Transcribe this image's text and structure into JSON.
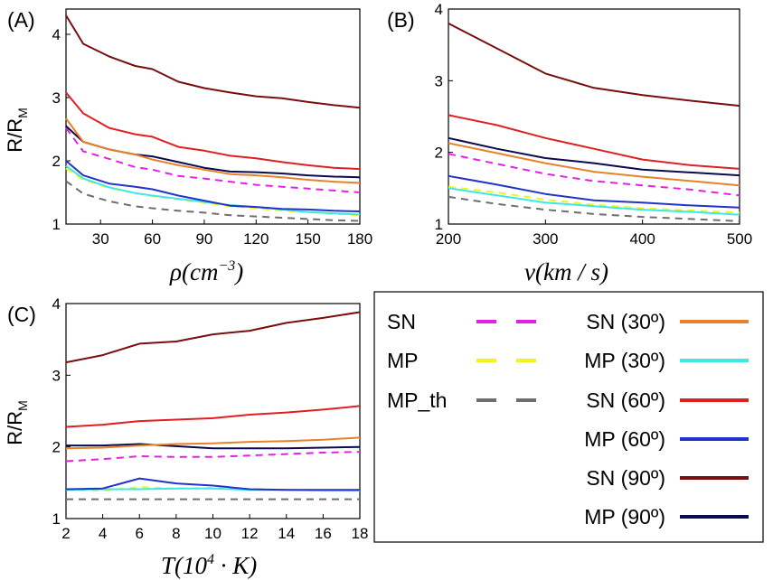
{
  "chart_data": [
    {
      "panel": "(A)",
      "type": "line",
      "ylabel": "R/R",
      "ylabel_sub": "M",
      "xlabel_var": "ρ",
      "xlabel_unit": "(cm",
      "xlabel_exp": "−3",
      "xlabel_close": ")",
      "xlim": [
        10,
        180
      ],
      "ylim": [
        1,
        4.4
      ],
      "xticks": [
        30,
        60,
        90,
        120,
        150,
        180
      ],
      "yticks": [
        1,
        2,
        3,
        4
      ],
      "x": [
        10,
        20,
        35,
        50,
        60,
        75,
        90,
        105,
        120,
        135,
        150,
        165,
        180
      ],
      "series": [
        {
          "name": "SN (90º)",
          "values": [
            4.3,
            3.85,
            3.65,
            3.5,
            3.45,
            3.25,
            3.15,
            3.08,
            3.02,
            2.99,
            2.93,
            2.88,
            2.84
          ]
        },
        {
          "name": "SN (60º)",
          "values": [
            3.08,
            2.75,
            2.52,
            2.42,
            2.38,
            2.22,
            2.16,
            2.08,
            2.04,
            1.98,
            1.93,
            1.89,
            1.87
          ]
        },
        {
          "name": "SN (30º)",
          "values": [
            2.67,
            2.3,
            2.18,
            2.1,
            2.02,
            1.93,
            1.86,
            1.79,
            1.77,
            1.74,
            1.7,
            1.67,
            1.65
          ]
        },
        {
          "name": "MP (90º)",
          "values": [
            2.55,
            2.3,
            2.18,
            2.1,
            2.07,
            1.98,
            1.89,
            1.83,
            1.82,
            1.8,
            1.77,
            1.75,
            1.74
          ]
        },
        {
          "name": "SN",
          "values": [
            2.52,
            2.15,
            2.03,
            1.9,
            1.86,
            1.76,
            1.72,
            1.67,
            1.62,
            1.59,
            1.56,
            1.53,
            1.5
          ]
        },
        {
          "name": "MP (60º)",
          "values": [
            2.0,
            1.77,
            1.64,
            1.59,
            1.55,
            1.45,
            1.37,
            1.29,
            1.27,
            1.24,
            1.23,
            1.21,
            1.2
          ]
        },
        {
          "name": "MP (30º)",
          "values": [
            1.92,
            1.72,
            1.58,
            1.49,
            1.45,
            1.4,
            1.35,
            1.3,
            1.27,
            1.23,
            1.19,
            1.17,
            1.15
          ]
        },
        {
          "name": "MP",
          "values": [
            1.88,
            1.7,
            1.57,
            1.49,
            1.44,
            1.39,
            1.34,
            1.28,
            1.25,
            1.21,
            1.19,
            1.16,
            1.14
          ]
        },
        {
          "name": "MP_th",
          "values": [
            1.68,
            1.48,
            1.36,
            1.28,
            1.25,
            1.21,
            1.18,
            1.14,
            1.12,
            1.1,
            1.08,
            1.06,
            1.05
          ]
        }
      ]
    },
    {
      "panel": "(B)",
      "type": "line",
      "xlabel_var": "v",
      "xlabel_unit": "(km / s)",
      "xlim": [
        200,
        500
      ],
      "ylim": [
        1,
        4
      ],
      "xticks": [
        200,
        300,
        400,
        500
      ],
      "yticks": [
        1,
        2,
        3,
        4
      ],
      "x": [
        200,
        250,
        300,
        350,
        400,
        450,
        500
      ],
      "series": [
        {
          "name": "SN (90º)",
          "values": [
            3.8,
            3.45,
            3.1,
            2.9,
            2.8,
            2.72,
            2.65
          ]
        },
        {
          "name": "SN (60º)",
          "values": [
            2.52,
            2.38,
            2.2,
            2.05,
            1.9,
            1.82,
            1.77
          ]
        },
        {
          "name": "MP (90º)",
          "values": [
            2.2,
            2.05,
            1.92,
            1.85,
            1.76,
            1.72,
            1.68
          ]
        },
        {
          "name": "SN (30º)",
          "values": [
            2.13,
            1.99,
            1.85,
            1.73,
            1.66,
            1.6,
            1.54
          ]
        },
        {
          "name": "SN",
          "values": [
            1.98,
            1.84,
            1.7,
            1.6,
            1.54,
            1.48,
            1.4
          ]
        },
        {
          "name": "MP (60º)",
          "values": [
            1.67,
            1.55,
            1.42,
            1.33,
            1.3,
            1.26,
            1.23
          ]
        },
        {
          "name": "MP (30º)",
          "values": [
            1.5,
            1.4,
            1.3,
            1.25,
            1.2,
            1.17,
            1.13
          ]
        },
        {
          "name": "MP",
          "values": [
            1.52,
            1.44,
            1.34,
            1.27,
            1.22,
            1.19,
            1.16
          ]
        },
        {
          "name": "MP_th",
          "values": [
            1.38,
            1.28,
            1.2,
            1.14,
            1.1,
            1.07,
            1.04
          ]
        }
      ]
    },
    {
      "panel": "(C)",
      "type": "line",
      "ylabel": "R/R",
      "ylabel_sub": "M",
      "xlabel_var": "T",
      "xlabel_unit": "(10",
      "xlabel_exp": "4",
      "xlabel_rest": " · K)",
      "xlim": [
        2,
        18
      ],
      "ylim": [
        1,
        4
      ],
      "xticks": [
        2,
        4,
        6,
        8,
        10,
        12,
        14,
        16,
        18
      ],
      "yticks": [
        1,
        2,
        3,
        4
      ],
      "x": [
        2,
        4,
        6,
        8,
        10,
        12,
        14,
        16,
        18
      ],
      "series": [
        {
          "name": "SN (90º)",
          "values": [
            3.18,
            3.28,
            3.44,
            3.47,
            3.57,
            3.62,
            3.73,
            3.8,
            3.88
          ]
        },
        {
          "name": "SN (60º)",
          "values": [
            2.28,
            2.31,
            2.36,
            2.38,
            2.4,
            2.45,
            2.48,
            2.52,
            2.57
          ]
        },
        {
          "name": "SN (30º)",
          "values": [
            1.98,
            1.99,
            2.02,
            2.04,
            2.05,
            2.07,
            2.08,
            2.1,
            2.13
          ]
        },
        {
          "name": "MP (90º)",
          "values": [
            2.02,
            2.02,
            2.04,
            2.01,
            1.98,
            1.98,
            1.98,
            1.99,
            2.0
          ]
        },
        {
          "name": "SN",
          "values": [
            1.8,
            1.83,
            1.87,
            1.86,
            1.86,
            1.88,
            1.9,
            1.92,
            1.93
          ]
        },
        {
          "name": "MP (60º)",
          "values": [
            1.41,
            1.42,
            1.56,
            1.49,
            1.46,
            1.41,
            1.4,
            1.4,
            1.4
          ]
        },
        {
          "name": "MP (30º)",
          "values": [
            1.4,
            1.41,
            1.41,
            1.42,
            1.42,
            1.4,
            1.4,
            1.39,
            1.39
          ]
        },
        {
          "name": "MP",
          "values": [
            1.4,
            1.39,
            1.44,
            1.42,
            1.43,
            1.41,
            1.4,
            1.39,
            1.39
          ]
        },
        {
          "name": "MP_th",
          "values": [
            1.27,
            1.27,
            1.27,
            1.27,
            1.27,
            1.27,
            1.27,
            1.27,
            1.27
          ]
        }
      ]
    }
  ],
  "legend": {
    "placement": "bottom-right",
    "entries": [
      {
        "label": "SN",
        "color": "#e81ee8",
        "style": "dashed"
      },
      {
        "label": "MP",
        "color": "#f4f418",
        "style": "dashed"
      },
      {
        "label": "MP_th",
        "color": "#6e6e6e",
        "style": "dashed"
      },
      {
        "label": "SN (30º)",
        "color": "#e8822a",
        "style": "solid"
      },
      {
        "label": "MP (30º)",
        "color": "#3de8e8",
        "style": "solid"
      },
      {
        "label": "SN (60º)",
        "color": "#e02020",
        "style": "solid"
      },
      {
        "label": "MP (60º)",
        "color": "#2233c8",
        "style": "solid"
      },
      {
        "label": "SN (90º)",
        "color": "#7a0e0e",
        "style": "solid"
      },
      {
        "label": "MP (90º)",
        "color": "#0a0a50",
        "style": "solid"
      }
    ]
  }
}
